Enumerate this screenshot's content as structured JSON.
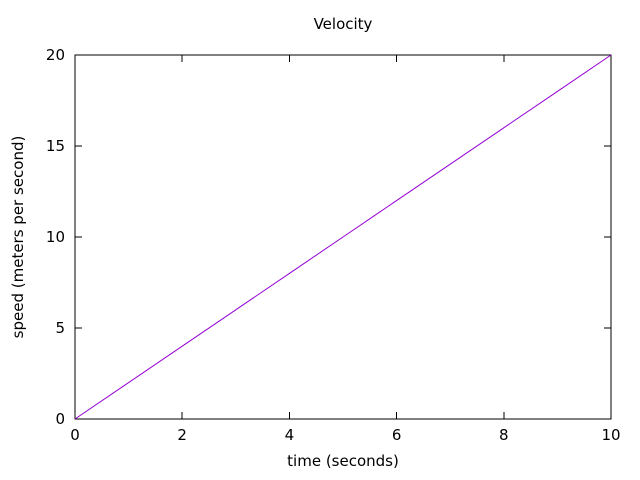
{
  "chart_data": {
    "type": "line",
    "title": "Velocity",
    "xlabel": "time (seconds)",
    "ylabel": "speed (meters per second)",
    "x": [
      0,
      1,
      2,
      3,
      4,
      5,
      6,
      7,
      8,
      9,
      10
    ],
    "y": [
      0,
      2,
      4,
      6,
      8,
      10,
      12,
      14,
      16,
      18,
      20
    ],
    "xlim": [
      0,
      10
    ],
    "ylim": [
      0,
      20
    ],
    "xticks": [
      0,
      2,
      4,
      6,
      8,
      10
    ],
    "yticks": [
      0,
      5,
      10,
      15,
      20
    ],
    "grid": false,
    "legend_position": "none",
    "line_color": "#9400d3",
    "frame_color": "#000000",
    "background_color": "#ffffff",
    "tick_style": "inward, mirrored on top and right borders"
  }
}
